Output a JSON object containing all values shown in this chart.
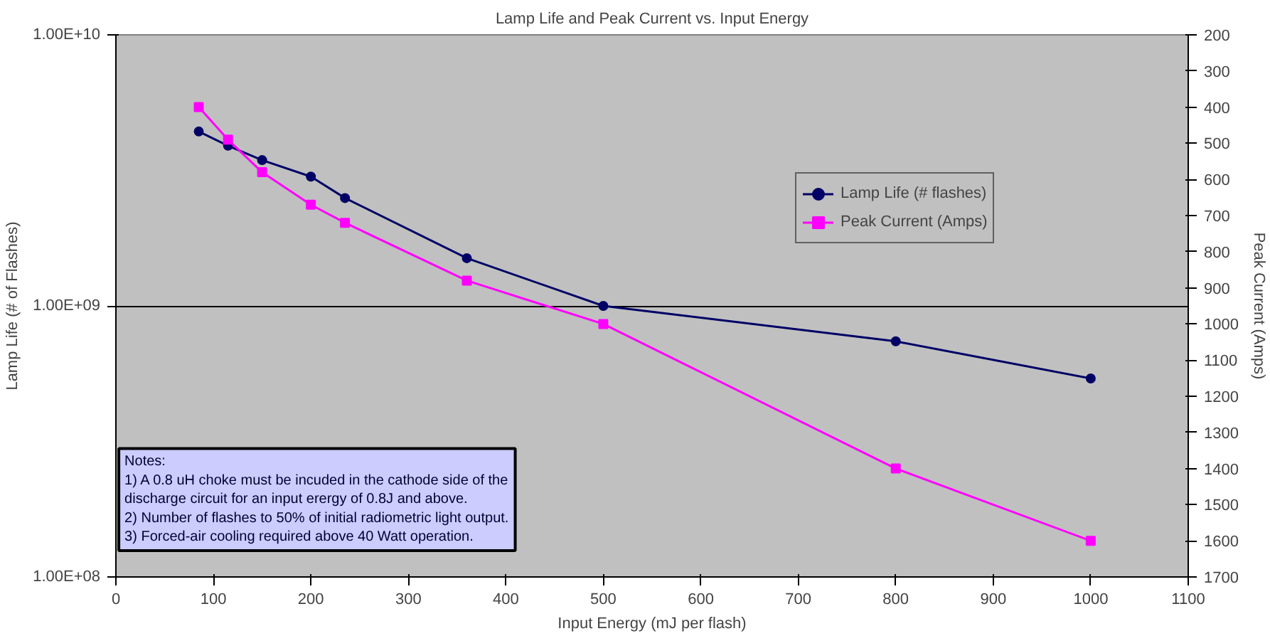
{
  "chart_data": {
    "type": "line",
    "title": "Lamp Life and Peak Current vs. Input Energy",
    "xlabel": "Input Energy (mJ per flash)",
    "ylabel": "Lamp Life (# of Flashes)",
    "y2label": "Peak Current (Amps)",
    "x": [
      85,
      115,
      150,
      200,
      235,
      360,
      500,
      800,
      1000
    ],
    "series": [
      {
        "name": "Lamp Life (# flashes)",
        "color": "#000066",
        "marker": "circle",
        "values": [
          4400000000,
          3900000000,
          3450000000,
          3000000000,
          2500000000,
          1500000000,
          1000000000,
          740000000,
          540000000
        ]
      },
      {
        "name": "Peak Current (Amps)",
        "color": "#ff00ff",
        "marker": "square",
        "axis": "y2",
        "values": [
          400,
          490,
          580,
          670,
          720,
          880,
          1000,
          1400,
          1600
        ]
      }
    ],
    "log": "y",
    "xlim": [
      0,
      1100
    ],
    "xticks": [
      0,
      100,
      200,
      300,
      400,
      500,
      600,
      700,
      800,
      900,
      1000,
      1100
    ],
    "ylim": [
      100000000,
      10000000000
    ],
    "yticks": [
      {
        "value": 100000000,
        "label": "1.00E+08"
      },
      {
        "value": 1000000000,
        "label": "1.00E+09"
      },
      {
        "value": 10000000000,
        "label": "1.00E+10"
      }
    ],
    "y2lim": [
      1700,
      200
    ],
    "y2ticks": [
      200,
      300,
      400,
      500,
      600,
      700,
      800,
      900,
      1000,
      1100,
      1200,
      1300,
      1400,
      1500,
      1600,
      1700
    ],
    "grid": "y",
    "legend": "top right",
    "annotations": [
      "Notes:",
      "1) A 0.8 uH choke must be incuded in the cathode side of the discharge circuit for an input erergy of 0.8J and above.",
      "2) Number of flashes to 50% of initial radiometric light output.",
      "3) Forced-air cooling required above 40 Watt operation."
    ]
  }
}
